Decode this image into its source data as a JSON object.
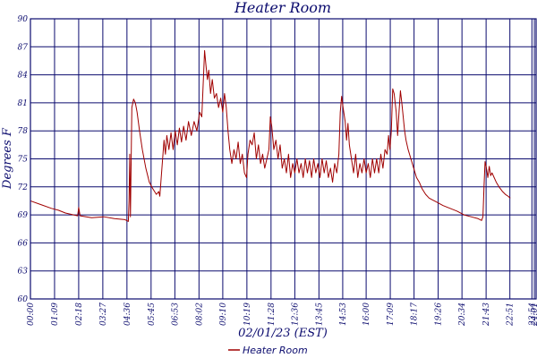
{
  "chart_data": {
    "type": "line",
    "title": "Heater Room",
    "xlabel": "02/01/23 (EST)",
    "ylabel": "Degrees F",
    "ylim": [
      60,
      90
    ],
    "yticks": [
      60,
      63,
      66,
      69,
      72,
      75,
      78,
      81,
      84,
      87,
      90
    ],
    "ytick_labels": [
      "60",
      "63",
      "66",
      "69",
      "72",
      "75",
      "78",
      "81",
      "84",
      "87",
      "90"
    ],
    "xlim_minutes": [
      0,
      1446
    ],
    "xtick_minutes": [
      0,
      69,
      138,
      207,
      276,
      345,
      413,
      482,
      550,
      619,
      688,
      756,
      825,
      893,
      960,
      1029,
      1097,
      1166,
      1234,
      1303,
      1371,
      1434,
      1441
    ],
    "xtick_labels": [
      "00:00",
      "01:09",
      "02:18",
      "03:27",
      "04:36",
      "05:45",
      "06:53",
      "08:02",
      "09:10",
      "10:19",
      "11:28",
      "12:36",
      "13:45",
      "14:53",
      "16:00",
      "17:09",
      "18:17",
      "19:26",
      "20:34",
      "21:43",
      "22:51",
      "23:54",
      "24:01"
    ],
    "legend": "bottom-center",
    "grid": true,
    "series": [
      {
        "name": "Heater Room",
        "color": "#a00000",
        "points": [
          [
            0,
            70.5
          ],
          [
            30,
            70.1
          ],
          [
            60,
            69.7
          ],
          [
            80,
            69.5
          ],
          [
            100,
            69.2
          ],
          [
            135,
            68.9
          ],
          [
            138,
            69.8
          ],
          [
            142,
            68.9
          ],
          [
            175,
            68.7
          ],
          [
            210,
            68.8
          ],
          [
            240,
            68.6
          ],
          [
            270,
            68.5
          ],
          [
            280,
            68.3
          ],
          [
            282,
            70.5
          ],
          [
            284,
            75.5
          ],
          [
            286,
            68.8
          ],
          [
            290,
            80.5
          ],
          [
            295,
            81.4
          ],
          [
            300,
            81.0
          ],
          [
            305,
            80.0
          ],
          [
            312,
            78.0
          ],
          [
            320,
            76.0
          ],
          [
            330,
            74.0
          ],
          [
            340,
            72.5
          ],
          [
            350,
            71.8
          ],
          [
            360,
            71.2
          ],
          [
            367,
            71.5
          ],
          [
            370,
            71.0
          ],
          [
            373,
            72.5
          ],
          [
            378,
            75.0
          ],
          [
            382,
            77.0
          ],
          [
            386,
            75.5
          ],
          [
            390,
            77.5
          ],
          [
            396,
            76.0
          ],
          [
            402,
            77.8
          ],
          [
            408,
            76.0
          ],
          [
            414,
            78.0
          ],
          [
            420,
            76.5
          ],
          [
            426,
            78.3
          ],
          [
            432,
            76.8
          ],
          [
            438,
            78.5
          ],
          [
            445,
            77.0
          ],
          [
            452,
            79.0
          ],
          [
            460,
            77.5
          ],
          [
            468,
            79.0
          ],
          [
            476,
            78.0
          ],
          [
            484,
            80.0
          ],
          [
            490,
            79.5
          ],
          [
            494,
            83.0
          ],
          [
            498,
            86.6
          ],
          [
            502,
            85.0
          ],
          [
            506,
            83.5
          ],
          [
            510,
            84.5
          ],
          [
            515,
            82.0
          ],
          [
            520,
            83.5
          ],
          [
            526,
            81.5
          ],
          [
            532,
            82.0
          ],
          [
            538,
            80.5
          ],
          [
            544,
            81.5
          ],
          [
            550,
            80.0
          ],
          [
            555,
            82.0
          ],
          [
            560,
            80.5
          ],
          [
            565,
            78.0
          ],
          [
            570,
            76.0
          ],
          [
            576,
            74.5
          ],
          [
            582,
            76.0
          ],
          [
            588,
            75.0
          ],
          [
            594,
            76.8
          ],
          [
            600,
            74.5
          ],
          [
            606,
            75.5
          ],
          [
            612,
            73.5
          ],
          [
            618,
            73.0
          ],
          [
            622,
            75.5
          ],
          [
            628,
            77.0
          ],
          [
            634,
            76.5
          ],
          [
            640,
            77.8
          ],
          [
            646,
            75.0
          ],
          [
            652,
            76.5
          ],
          [
            658,
            74.5
          ],
          [
            664,
            75.5
          ],
          [
            670,
            74.0
          ],
          [
            676,
            75.0
          ],
          [
            682,
            76.0
          ],
          [
            686,
            79.5
          ],
          [
            690,
            78.5
          ],
          [
            696,
            76.0
          ],
          [
            702,
            77.0
          ],
          [
            708,
            75.0
          ],
          [
            714,
            76.5
          ],
          [
            720,
            74.0
          ],
          [
            726,
            75.0
          ],
          [
            732,
            73.5
          ],
          [
            738,
            75.5
          ],
          [
            744,
            73.0
          ],
          [
            750,
            74.5
          ],
          [
            756,
            73.5
          ],
          [
            762,
            75.0
          ],
          [
            768,
            73.5
          ],
          [
            774,
            74.5
          ],
          [
            780,
            73.0
          ],
          [
            786,
            75.0
          ],
          [
            792,
            73.5
          ],
          [
            798,
            74.8
          ],
          [
            804,
            73.0
          ],
          [
            810,
            75.0
          ],
          [
            816,
            73.5
          ],
          [
            822,
            74.5
          ],
          [
            828,
            73.0
          ],
          [
            834,
            75.0
          ],
          [
            840,
            73.5
          ],
          [
            846,
            74.8
          ],
          [
            852,
            73.0
          ],
          [
            858,
            74.0
          ],
          [
            864,
            72.5
          ],
          [
            870,
            74.5
          ],
          [
            876,
            73.5
          ],
          [
            882,
            75.5
          ],
          [
            886,
            80.0
          ],
          [
            890,
            81.7
          ],
          [
            894,
            80.5
          ],
          [
            900,
            79.0
          ],
          [
            904,
            77.0
          ],
          [
            908,
            78.8
          ],
          [
            912,
            76.5
          ],
          [
            918,
            75.0
          ],
          [
            924,
            73.5
          ],
          [
            930,
            75.5
          ],
          [
            936,
            73.0
          ],
          [
            942,
            74.5
          ],
          [
            948,
            73.5
          ],
          [
            954,
            75.0
          ],
          [
            960,
            73.5
          ],
          [
            966,
            74.5
          ],
          [
            972,
            73.0
          ],
          [
            978,
            75.0
          ],
          [
            984,
            73.5
          ],
          [
            990,
            75.0
          ],
          [
            996,
            73.5
          ],
          [
            1002,
            75.5
          ],
          [
            1008,
            74.0
          ],
          [
            1014,
            76.0
          ],
          [
            1020,
            75.5
          ],
          [
            1024,
            77.5
          ],
          [
            1028,
            76.0
          ],
          [
            1032,
            78.0
          ],
          [
            1036,
            82.5
          ],
          [
            1040,
            82.0
          ],
          [
            1046,
            80.0
          ],
          [
            1050,
            77.5
          ],
          [
            1054,
            80.0
          ],
          [
            1058,
            82.3
          ],
          [
            1062,
            81.0
          ],
          [
            1066,
            79.5
          ],
          [
            1070,
            78.0
          ],
          [
            1074,
            77.0
          ],
          [
            1080,
            76.0
          ],
          [
            1088,
            75.0
          ],
          [
            1096,
            74.0
          ],
          [
            1104,
            73.0
          ],
          [
            1112,
            72.5
          ],
          [
            1120,
            71.8
          ],
          [
            1130,
            71.2
          ],
          [
            1140,
            70.8
          ],
          [
            1150,
            70.6
          ],
          [
            1160,
            70.4
          ],
          [
            1170,
            70.2
          ],
          [
            1180,
            70.0
          ],
          [
            1200,
            69.7
          ],
          [
            1220,
            69.4
          ],
          [
            1240,
            69.0
          ],
          [
            1260,
            68.8
          ],
          [
            1280,
            68.6
          ],
          [
            1290,
            68.4
          ],
          [
            1294,
            68.8
          ],
          [
            1297,
            72.0
          ],
          [
            1300,
            74.7
          ],
          [
            1304,
            74.0
          ],
          [
            1308,
            73.0
          ],
          [
            1312,
            74.2
          ],
          [
            1316,
            73.2
          ],
          [
            1320,
            73.5
          ],
          [
            1326,
            73.0
          ],
          [
            1332,
            72.5
          ],
          [
            1340,
            72.0
          ],
          [
            1350,
            71.5
          ],
          [
            1358,
            71.2
          ],
          [
            1366,
            71.0
          ],
          [
            1372,
            70.8
          ]
        ]
      }
    ]
  }
}
